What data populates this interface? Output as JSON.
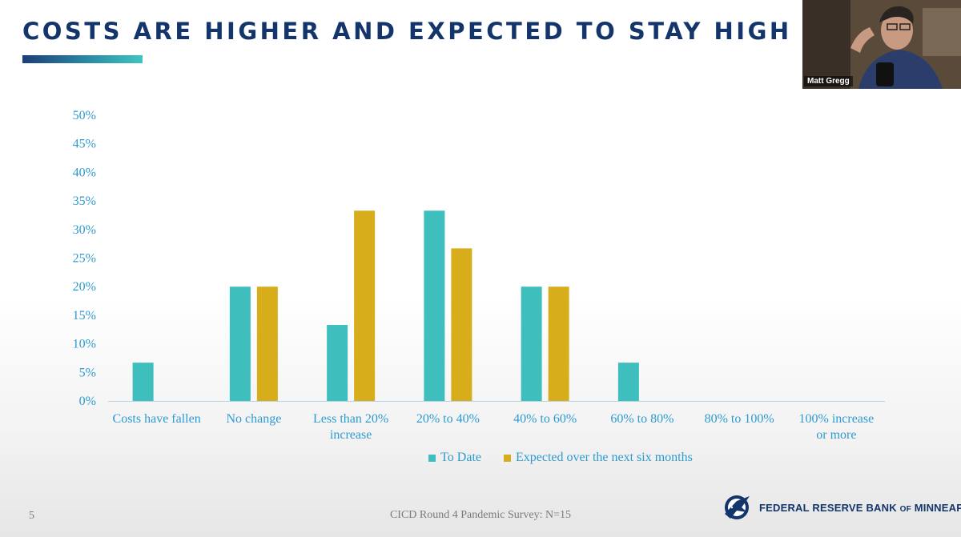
{
  "slide": {
    "title": "COSTS ARE HIGHER AND EXPECTED TO STAY HIGH",
    "page_number": "5",
    "footer_source": "CICD Round 4 Pandemic Survey: N=15",
    "org_name": "FEDERAL RESERVE BANK",
    "org_of": "OF",
    "org_city": "MINNEAPOLIS",
    "title_bar_gradient": [
      "#1b3f78",
      "#3fc4c2"
    ]
  },
  "video": {
    "participant_name": "Matt Gregg"
  },
  "chart_data": {
    "type": "bar",
    "categories": [
      [
        "Costs have fallen"
      ],
      [
        "No change"
      ],
      [
        "Less than 20%",
        "increase"
      ],
      [
        "20% to 40%"
      ],
      [
        "40% to 60%"
      ],
      [
        "60% to 80%"
      ],
      [
        "80% to 100%"
      ],
      [
        "100% increase",
        "or more"
      ]
    ],
    "series": [
      {
        "name": "To Date",
        "color": "#3ebfbe",
        "values": [
          6.7,
          20,
          13.3,
          33.3,
          20,
          6.7,
          0,
          0
        ]
      },
      {
        "name": "Expected over the next six months",
        "color": "#d8ad1c",
        "values": [
          0,
          20,
          33.3,
          26.7,
          20,
          0,
          0,
          0
        ]
      }
    ],
    "ylim": [
      0,
      50
    ],
    "yticks": [
      "0%",
      "5%",
      "10%",
      "15%",
      "20%",
      "25%",
      "30%",
      "35%",
      "40%",
      "45%",
      "50%"
    ],
    "ytick_values": [
      0,
      5,
      10,
      15,
      20,
      25,
      30,
      35,
      40,
      45,
      50
    ],
    "grid": false,
    "legend_position": "bottom",
    "title": "",
    "xlabel": "",
    "ylabel": ""
  }
}
